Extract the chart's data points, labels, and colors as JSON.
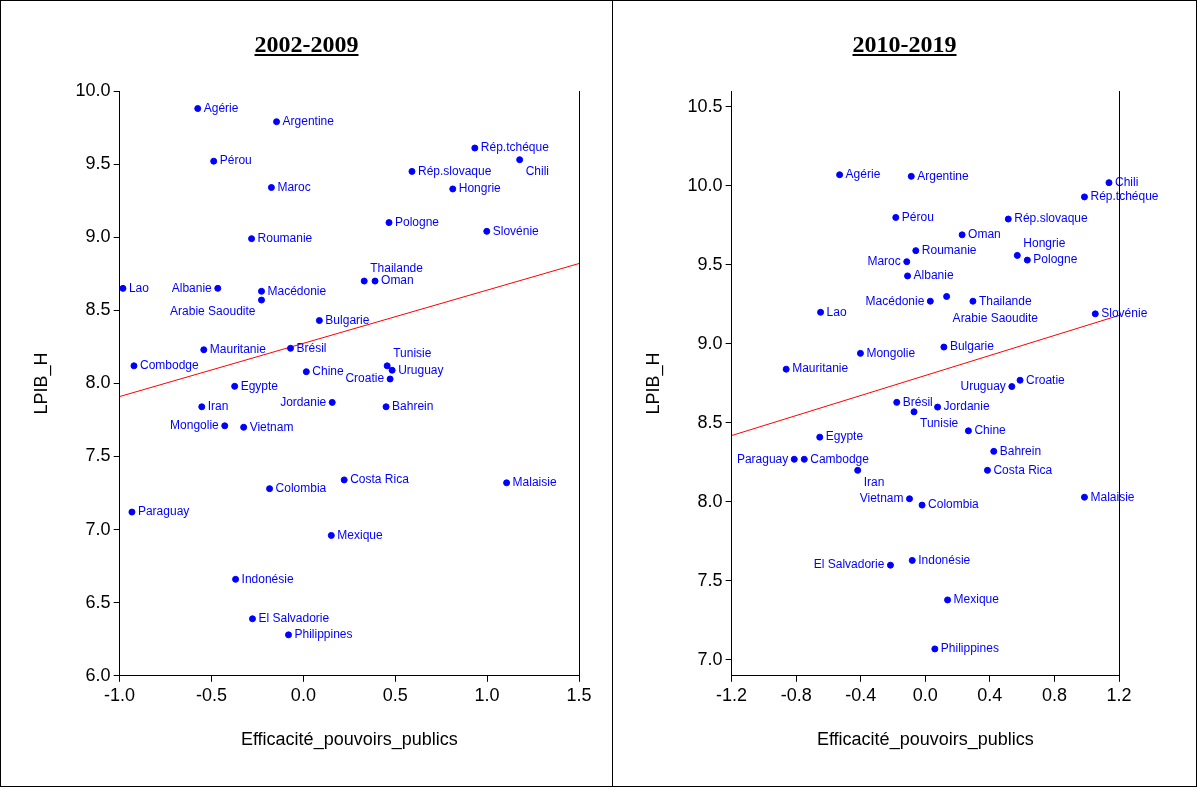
{
  "chart_data": [
    {
      "type": "scatter",
      "title": "2002-2009",
      "xlabel": "Efficacité_pouvoirs_publics",
      "ylabel": "LPIB_H",
      "xlim": [
        -1.0,
        1.5
      ],
      "ylim": [
        6.0,
        10.0
      ],
      "xticks": [
        {
          "value": -1.0,
          "label": "-1.0"
        },
        {
          "value": -0.5,
          "label": "-0.5"
        },
        {
          "value": 0.0,
          "label": "0.0"
        },
        {
          "value": 0.5,
          "label": "0.5"
        },
        {
          "value": 1.0,
          "label": "1.0"
        },
        {
          "value": 1.5,
          "label": "1.5"
        }
      ],
      "yticks": [
        {
          "value": 6.0,
          "label": "6.0"
        },
        6.5,
        {
          "value": 7.0,
          "label": "7.0"
        },
        7.5,
        {
          "value": 8.0,
          "label": "8.0"
        },
        8.5,
        {
          "value": 9.0,
          "label": "9.0"
        },
        9.5,
        {
          "value": 10.0,
          "label": "10.0"
        }
      ],
      "grid": false,
      "legend": false,
      "x": [
        -0.575,
        -0.146,
        -0.488,
        -0.174,
        0.933,
        1.177,
        0.591,
        0.813,
        0.466,
        0.998,
        -0.282,
        -0.982,
        -0.466,
        -0.228,
        -0.228,
        0.331,
        0.39,
        0.087,
        -0.542,
        -0.07,
        -0.922,
        0.016,
        0.456,
        0.483,
        0.472,
        -0.374,
        -0.553,
        0.157,
        0.45,
        -0.428,
        -0.325,
        -0.184,
        0.222,
        1.106,
        -0.933,
        0.152,
        -0.369,
        -0.277,
        -0.081
      ],
      "series": [
        {
          "color": "#0000ff",
          "marker": "circle",
          "values": [
            9.88,
            9.79,
            9.52,
            9.34,
            9.61,
            9.53,
            9.45,
            9.33,
            9.1,
            9.04,
            8.99,
            8.65,
            8.65,
            8.63,
            8.57,
            8.7,
            8.7,
            8.43,
            8.23,
            8.24,
            8.12,
            8.08,
            8.12,
            8.09,
            8.03,
            7.98,
            7.84,
            7.87,
            7.84,
            7.71,
            7.7,
            7.28,
            7.34,
            7.32,
            7.12,
            6.96,
            6.66,
            6.39,
            6.28
          ],
          "value_labels": [
            "Agérie",
            "Argentine",
            "Pérou",
            "Maroc",
            "Rép.tchéque",
            "Chili",
            "Rép.slovaque",
            "Hongrie",
            "Pologne",
            "Slovénie",
            "Roumanie",
            "Lao",
            "Albanie",
            "Macédonie",
            "Arabie Saoudite",
            "Thailande",
            "Oman",
            "Bulgarie",
            "Mauritanie",
            "Brésil",
            "Combodge",
            "Chine",
            "Tunisie",
            "Uruguay",
            "Croatie",
            "Egypte",
            "Iran",
            "Jordanie",
            "Bahrein",
            "Mongolie",
            "Vietnam",
            "Colombia",
            "Costa Rica",
            "Malaisie",
            "Paraguay",
            "Mexique",
            "Indonésie",
            "El Salvadorie",
            "Philippines"
          ]
        },
        {
          "type": "line",
          "color": "#ff0000",
          "x": [
            -1.0,
            1.5
          ],
          "values": [
            7.91,
            8.82
          ]
        }
      ]
    },
    {
      "type": "scatter",
      "title": "2010-2019",
      "xlabel": "Efficacité_pouvoirs_publics",
      "ylabel": "LPIB_H",
      "xlim": [
        -1.2,
        1.2
      ],
      "ylim": [
        6.9,
        10.6
      ],
      "xticks": [
        -1.2,
        -0.8,
        -0.4,
        {
          "value": 0.0,
          "label": "0.0"
        },
        0.4,
        0.8,
        1.2
      ],
      "yticks": [
        {
          "value": 7.0,
          "label": "7.0"
        },
        7.5,
        {
          "value": 8.0,
          "label": "8.0"
        },
        8.5,
        {
          "value": 9.0,
          "label": "9.0"
        },
        9.5,
        {
          "value": 10.0,
          "label": "10.0"
        },
        10.5
      ],
      "grid": false,
      "legend": false,
      "x": [
        -0.531,
        -0.087,
        1.138,
        0.986,
        -0.183,
        0.514,
        0.228,
        -0.059,
        -0.115,
        0.57,
        0.632,
        -0.11,
        0.132,
        0.031,
        0.295,
        -0.649,
        1.053,
        0.115,
        -0.402,
        -0.862,
        0.587,
        0.536,
        -0.177,
        0.076,
        -0.07,
        0.267,
        -0.654,
        0.424,
        -0.812,
        -0.75,
        -0.419,
        0.385,
        -0.098,
        -0.02,
        0.986,
        -0.081,
        -0.216,
        0.138,
        0.059
      ],
      "series": [
        {
          "color": "#0000ff",
          "marker": "circle",
          "values": [
            10.07,
            10.06,
            10.02,
            9.93,
            9.8,
            9.79,
            9.69,
            9.59,
            9.52,
            9.56,
            9.53,
            9.43,
            9.3,
            9.27,
            9.27,
            9.2,
            9.19,
            8.98,
            8.94,
            8.84,
            8.77,
            8.73,
            8.63,
            8.6,
            8.57,
            8.45,
            8.41,
            8.32,
            8.27,
            8.27,
            8.2,
            8.2,
            8.02,
            7.98,
            8.03,
            7.63,
            7.6,
            7.38,
            7.07
          ],
          "value_labels": [
            "Agérie",
            "Argentine",
            "Chili",
            "Rép.tchéque",
            "Pérou",
            "Rép.slovaque",
            "Oman",
            "Roumanie",
            "Maroc",
            "Hongrie",
            "Pologne",
            "Albanie",
            "Arabie Saoudite",
            "Macédonie",
            "Thailande",
            "Lao",
            "Slovénie",
            "Bulgarie",
            "Mongolie",
            "Mauritanie",
            "Croatie",
            "Uruguay",
            "Brésil",
            "Jordanie",
            "Tunisie",
            "Chine",
            "Egypte",
            "Bahrein",
            "Paraguay",
            "Cambodge",
            "Iran",
            "Costa Rica",
            "Vietnam",
            "Colombia",
            "Malaisie",
            "Indonésie",
            "El Salvadorie",
            "Mexique",
            "Philippines"
          ]
        },
        {
          "type": "line",
          "color": "#ff0000",
          "x": [
            -1.2,
            1.2
          ],
          "values": [
            8.42,
            9.18
          ]
        }
      ]
    }
  ]
}
